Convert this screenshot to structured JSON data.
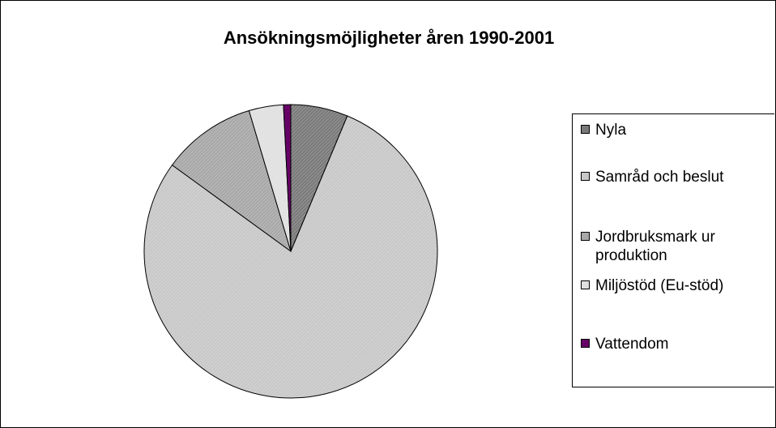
{
  "chart_data": {
    "type": "pie",
    "title": "Ansökningsmöjligheter åren 1990-2001",
    "categories": [
      "Nyla",
      "Samråd och beslut",
      "Jordbruksmark ur produktion",
      "Miljöstöd (Eu-stöd)",
      "Vattendom"
    ],
    "values": [
      6.3,
      78.7,
      10.4,
      3.8,
      0.8
    ],
    "colors": [
      "#7a7a7a",
      "#c8c8c8",
      "#a8a8a8",
      "#e0e0e0",
      "#660066"
    ],
    "legend": "right"
  }
}
